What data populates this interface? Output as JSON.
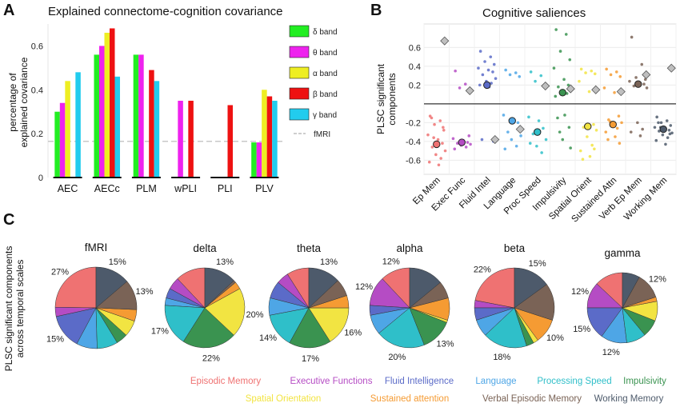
{
  "panels": {
    "a_letter": "A",
    "b_letter": "B",
    "c_letter": "C"
  },
  "panel_a": {
    "title": "Explained connectome-cognition covariance",
    "ylabel_line1": "percentage of",
    "ylabel_line2": "explained covariance",
    "fmri_label": "fMRI"
  },
  "panel_b": {
    "title": "Cognitive saliences",
    "ylabel_line1": "PLSC significant",
    "ylabel_line2": "components"
  },
  "panel_c": {
    "ylabel_line1": "PLSC significant components",
    "ylabel_line2": "across temporal scales"
  },
  "colors": {
    "delta": "#22ee22",
    "theta": "#ee22ee",
    "alpha": "#eeee22",
    "beta": "#ee1111",
    "gamma": "#22ccee",
    "Episodic Memory": "#ef7272",
    "Executive Functions": "#b54cc4",
    "Fluid Intelligence": "#5b6bc8",
    "Language": "#4ea6e6",
    "Processing Speed": "#2fbfc9",
    "Impulsivity": "#3a9350",
    "Spatial Orientation": "#f2e442",
    "Sustained attention": "#f59b33",
    "Verbal Episodic Memory": "#7a6356",
    "Working Memory": "#4d5a6b"
  },
  "chart_data": [
    {
      "type": "bar",
      "title": "Explained connectome-cognition covariance",
      "ylabel": "percentage of explained covariance",
      "categories": [
        "AEC",
        "AECc",
        "PLM",
        "wPLI",
        "PLI",
        "PLV"
      ],
      "ylim": [
        0,
        0.7
      ],
      "yticks": [
        0,
        0.2,
        0.4,
        0.6
      ],
      "series": [
        {
          "name": "δ band",
          "values": [
            0.3,
            0.56,
            0.56,
            0,
            0,
            0.16
          ]
        },
        {
          "name": "θ band",
          "values": [
            0.34,
            0.6,
            0.56,
            0.35,
            0,
            0.16
          ]
        },
        {
          "name": "α band",
          "values": [
            0.44,
            0.66,
            0,
            0,
            0,
            0.4
          ]
        },
        {
          "name": "β band",
          "values": [
            0,
            0.68,
            0.49,
            0.35,
            0.33,
            0.37
          ]
        },
        {
          "name": "γ band",
          "values": [
            0.48,
            0.46,
            0.44,
            0,
            0,
            0.35
          ]
        }
      ],
      "reference_line": {
        "name": "fMRI",
        "value": 0.165
      }
    },
    {
      "type": "scatter",
      "title": "Cognitive saliences",
      "ylabel": "PLSC significant components",
      "categories": [
        "Ep Mem",
        "Exec Func",
        "Fluid Intel",
        "Language",
        "Proc Speed",
        "Impulsivity",
        "Spatial Orient",
        "Sustained Attn",
        "Verb Ep Mem",
        "Working Mem"
      ],
      "ylim": [
        -0.75,
        0.85
      ],
      "yticks": [
        -0.6,
        -0.4,
        -0.2,
        0.2,
        0.4,
        0.6
      ],
      "grid": true,
      "means": [
        -0.43,
        -0.41,
        0.2,
        -0.18,
        -0.3,
        0.12,
        -0.24,
        -0.22,
        0.21,
        -0.27
      ],
      "fmri_diamonds": [
        [
          0.67
        ],
        [
          0.14
        ],
        [
          -0.38
        ],
        [
          -0.27
        ],
        [
          0.19
        ],
        [
          0.16
        ],
        [
          0.15
        ],
        [
          0.13
        ],
        [
          0.31
        ],
        [
          0.38
        ]
      ],
      "points": [
        [
          -0.13,
          -0.18,
          -0.22,
          -0.28,
          -0.33,
          -0.38,
          -0.42,
          -0.46,
          -0.5,
          -0.54,
          -0.58,
          -0.62,
          -0.65,
          -0.15,
          -0.25,
          -0.36
        ],
        [
          0.35,
          0.21,
          0.17,
          -0.34,
          -0.37,
          -0.39,
          -0.41,
          -0.42,
          -0.43,
          -0.44,
          -0.46,
          -0.48,
          -0.4
        ],
        [
          0.56,
          0.5,
          0.45,
          0.42,
          0.38,
          0.36,
          0.34,
          0.31,
          0.27,
          0.24,
          0.22,
          0.2,
          0.18,
          -0.38,
          -0.4
        ],
        [
          0.36,
          0.33,
          0.31,
          0.29,
          -0.12,
          -0.17,
          -0.2,
          -0.3,
          -0.34,
          -0.38,
          -0.45,
          -0.48
        ],
        [
          0.34,
          0.3,
          0.24,
          0.18,
          -0.14,
          -0.18,
          -0.26,
          -0.32,
          -0.38,
          -0.45,
          -0.52,
          -0.42
        ],
        [
          0.79,
          0.74,
          0.56,
          0.47,
          0.38,
          0.26,
          0.2,
          0.18,
          0.16,
          0.13,
          0.11,
          0.08,
          -0.12,
          -0.15,
          -0.25,
          -0.3,
          -0.38,
          -0.47
        ],
        [
          0.37,
          0.35,
          0.33,
          0.32,
          0.24,
          0.13,
          -0.22,
          -0.25,
          -0.28,
          -0.35,
          -0.44,
          -0.5,
          -0.56,
          -0.59,
          -0.48
        ],
        [
          0.37,
          0.34,
          0.31,
          0.29,
          0.17,
          0.12,
          -0.13,
          -0.17,
          -0.2,
          -0.23,
          -0.26,
          -0.3,
          -0.35,
          -0.38,
          -0.42,
          -0.19
        ],
        [
          0.71,
          0.42,
          0.28,
          0.26,
          0.24,
          0.22,
          0.21,
          0.19,
          0.17,
          -0.2,
          -0.27,
          -0.3,
          -0.34
        ],
        [
          -0.14,
          -0.18,
          -0.2,
          -0.23,
          -0.25,
          -0.27,
          -0.28,
          -0.29,
          -0.31,
          -0.33,
          -0.36,
          -0.39,
          -0.43,
          -0.2,
          -0.32,
          -0.25
        ]
      ]
    },
    {
      "type": "pie",
      "charts": [
        {
          "name": "fMRI",
          "values": [
            27,
            4,
            15,
            9,
            9,
            5,
            7,
            5,
            13,
            15
          ],
          "labels": [
            "27%",
            "",
            "15%",
            "",
            "",
            "",
            "",
            "",
            "13%",
            "15%"
          ]
        },
        {
          "name": "delta",
          "values": [
            12,
            5,
            4,
            3,
            17,
            22,
            20,
            3,
            1,
            13
          ],
          "labels": [
            "",
            "",
            "",
            "",
            "17%",
            "22%",
            "20%",
            "",
            "",
            "13%"
          ]
        },
        {
          "name": "theta",
          "values": [
            9,
            5,
            7,
            7,
            14,
            17,
            16,
            5,
            7,
            13
          ],
          "labels": [
            "",
            "",
            "",
            "",
            "14%",
            "17%",
            "16%",
            "",
            "",
            "13%"
          ]
        },
        {
          "name": "alpha",
          "values": [
            12,
            12,
            4,
            8,
            20,
            13,
            1,
            9,
            7,
            14
          ],
          "labels": [
            "12%",
            "12%",
            "",
            "",
            "20%",
            "13%",
            "",
            "",
            "",
            ""
          ]
        },
        {
          "name": "beta",
          "values": [
            22,
            3,
            5,
            7,
            18,
            3,
            2,
            10,
            15,
            15
          ],
          "labels": [
            "22%",
            "",
            "",
            "",
            "18%",
            "",
            "",
            "10%",
            "",
            "15%"
          ]
        },
        {
          "name": "gamma",
          "values": [
            13,
            12,
            15,
            12,
            9,
            8,
            9,
            2,
            12,
            8
          ],
          "labels": [
            "",
            "12%",
            "15%",
            "12%",
            "",
            "",
            "",
            "",
            "12%",
            ""
          ]
        }
      ],
      "legend": [
        "Episodic Memory",
        "Executive Functions",
        "Fluid Intelligence",
        "Language",
        "Processing Speed",
        "Impulsivity",
        "Spatial Orientation",
        "Sustained attention",
        "Verbal Episodic Memory",
        "Working Memory"
      ]
    }
  ]
}
